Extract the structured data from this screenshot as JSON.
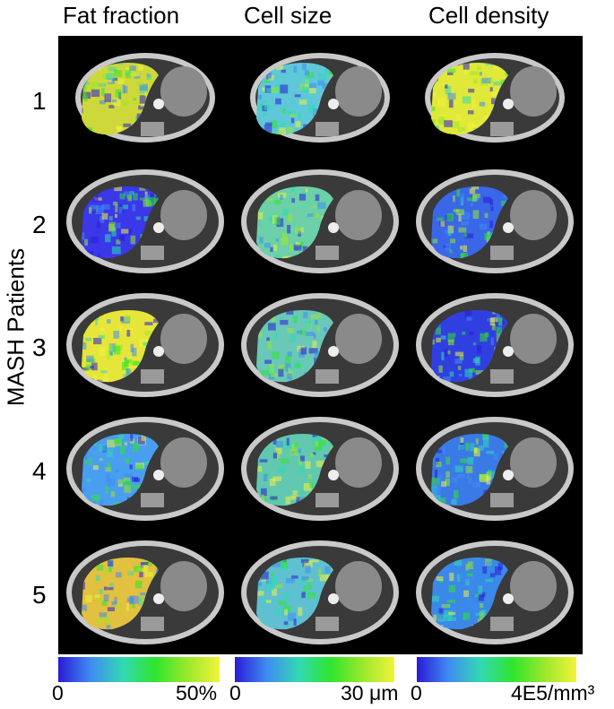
{
  "columns": [
    "Fat fraction",
    "Cell size",
    "Cell density"
  ],
  "y_axis_label": "MASH Patients",
  "rows": [
    "1",
    "2",
    "3",
    "4",
    "5"
  ],
  "colorbars": [
    {
      "min": "0",
      "max": "50%"
    },
    {
      "min": "0",
      "max": "30 μm"
    },
    {
      "min": "0",
      "max": "4E5/mm³"
    }
  ],
  "colormap": [
    "#2a1bd6",
    "#3f8cf0",
    "#32d8b4",
    "#2fe52e",
    "#9ae82c",
    "#f2f33a"
  ],
  "base_tint": {
    "fat": "#7fb0f0",
    "size": "#5ecfc0",
    "density": "#3a5ce0"
  },
  "dominant_tint": [
    [
      "#cfd83a",
      "#5fc8d8",
      "#e0e83a"
    ],
    [
      "#3a38e8",
      "#6cd0a8",
      "#3a66e8"
    ],
    [
      "#e6e63a",
      "#6ac8b8",
      "#3040e0"
    ],
    [
      "#4a9ef0",
      "#62c8b0",
      "#3a7ae6"
    ],
    [
      "#e2c040",
      "#5ec0d0",
      "#3a88e8"
    ]
  ]
}
